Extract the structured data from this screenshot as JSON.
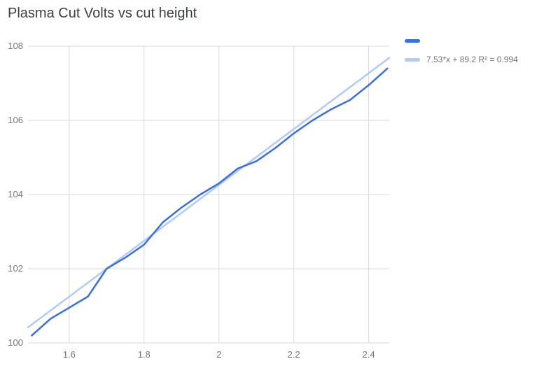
{
  "title": "Plasma Cut Volts vs cut height",
  "legend": {
    "items": [
      {
        "label": "",
        "color": "#3b6fdf"
      },
      {
        "label": "7.53*x + 89.2 R² = 0.994",
        "color": "#aecbfa"
      }
    ]
  },
  "colors": {
    "series": "#3b6fdf",
    "trendline": "#aecbfa",
    "grid": "#d9d9d9",
    "axis_text": "#757575",
    "title_text": "#3c4043",
    "background": "#ffffff"
  },
  "chart_data": {
    "type": "line",
    "title": "Plasma Cut Volts vs cut height",
    "xlabel": "",
    "ylabel": "",
    "xlim": [
      1.49,
      2.455
    ],
    "ylim": [
      100,
      108
    ],
    "x_ticks": [
      1.6,
      1.8,
      2.0,
      2.2,
      2.4
    ],
    "x_tick_labels": [
      "1.6",
      "1.8",
      "2",
      "2.2",
      "2.4"
    ],
    "y_ticks": [
      100,
      102,
      104,
      106,
      108
    ],
    "y_tick_labels": [
      "100",
      "102",
      "104",
      "106",
      "108"
    ],
    "grid": true,
    "legend_position": "right",
    "series": [
      {
        "name": "",
        "x": [
          1.5,
          1.55,
          1.6,
          1.65,
          1.7,
          1.75,
          1.8,
          1.85,
          1.9,
          1.95,
          2.0,
          2.05,
          2.1,
          2.15,
          2.2,
          2.25,
          2.3,
          2.35,
          2.4,
          2.45
        ],
        "y": [
          100.2,
          100.65,
          100.95,
          101.25,
          102.0,
          102.3,
          102.65,
          103.25,
          103.65,
          104.0,
          104.3,
          104.7,
          104.9,
          105.25,
          105.65,
          106.0,
          106.3,
          106.55,
          106.95,
          107.4
        ]
      }
    ],
    "trendline": {
      "label": "7.53*x + 89.2 R² = 0.994",
      "slope": 7.53,
      "intercept": 89.2,
      "r_squared": 0.994
    }
  }
}
